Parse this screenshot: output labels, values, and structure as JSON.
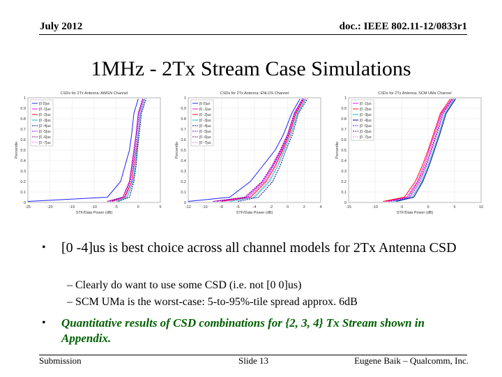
{
  "header": {
    "date": "July 2012",
    "doc": "doc.: IEEE 802.11-12/0833r1"
  },
  "title": "1MHz - 2Tx Stream Case Simulations",
  "chart_data": [
    {
      "type": "line",
      "title": "CSDs for 2Tx Antenna: AWGN Channel",
      "xlabel": "STF/Data Power (dB)",
      "ylabel": "Percentile",
      "xlim": [
        -25,
        5
      ],
      "ylim": [
        0,
        1
      ],
      "xticks": [
        "-25",
        "-20",
        "-15",
        "-10",
        "-5",
        "0",
        "5"
      ],
      "yticks": [
        "0",
        "0.1",
        "0.2",
        "0.3",
        "0.4",
        "0.5",
        "0.6",
        "0.7",
        "0.8",
        "0.9",
        "1"
      ],
      "legend": [
        "[0 0]us",
        "[0 -1]us",
        "[0 -2]us",
        "[0 -3]us",
        "[0 -4]us",
        "[0 -5]us",
        "[0 -6]us",
        "[0 -7]us"
      ],
      "colors": [
        "#1f1fff",
        "#ff00ff",
        "#ff0000",
        "#00c0c0",
        "#000080",
        "#8000ff",
        "#800080",
        "#ff80ff"
      ],
      "series_shape": [
        [
          -25,
          -7,
          -4,
          -3,
          -2,
          -1.5,
          -1,
          0
        ],
        [
          -7,
          -3.5,
          -2,
          -1.5,
          -1,
          -0.5,
          0,
          1
        ],
        [
          -6,
          -3,
          -1.5,
          -1,
          -0.5,
          0,
          0.5,
          1.5
        ],
        [
          -5,
          -2.5,
          -1.2,
          -0.7,
          -0.3,
          0,
          0.5,
          1.5
        ],
        [
          -4.5,
          -2,
          -1,
          -0.5,
          -0.2,
          0.2,
          0.7,
          1.8
        ],
        [
          -6.5,
          -3.2,
          -1.8,
          -1.2,
          -0.7,
          -0.3,
          0.2,
          1.2
        ],
        [
          -7,
          -3.5,
          -2,
          -1.4,
          -0.9,
          -0.5,
          0,
          1
        ],
        [
          -5.5,
          -2.8,
          -1.4,
          -0.9,
          -0.5,
          -0.1,
          0.4,
          1.4
        ]
      ]
    },
    {
      "type": "line",
      "title": "CSDs for 2Tx Antenna: ENLOS Channel",
      "xlabel": "STF/Data Power (dB)",
      "ylabel": "Percentile",
      "xlim": [
        -12,
        4
      ],
      "ylim": [
        0,
        1
      ],
      "xticks": [
        "-12",
        "-10",
        "-8",
        "-6",
        "-4",
        "-2",
        "0",
        "2",
        "4"
      ],
      "yticks": [
        "0",
        "0.1",
        "0.2",
        "0.3",
        "0.4",
        "0.5",
        "0.6",
        "0.7",
        "0.8",
        "0.9",
        "1"
      ],
      "legend": [
        "[0 0]us",
        "[0 -1]us",
        "[0 -2]us",
        "[0 -3]us",
        "[0 -4]us",
        "[0 -5]us",
        "[0 -6]us",
        "[0 -7]us"
      ],
      "colors": [
        "#1f1fff",
        "#ff00ff",
        "#ff0000",
        "#00c0c0",
        "#000080",
        "#8000ff",
        "#800080",
        "#ff80ff"
      ],
      "series_shape": [
        [
          -12,
          -7,
          -4.5,
          -3,
          -1.5,
          -0.5,
          0.5,
          1.5
        ],
        [
          -9,
          -5,
          -3,
          -1.8,
          -0.8,
          0,
          0.8,
          1.8
        ],
        [
          -8,
          -4.5,
          -2.6,
          -1.5,
          -0.6,
          0.2,
          1,
          2
        ],
        [
          -7,
          -4,
          -2.2,
          -1.2,
          -0.4,
          0.4,
          1.2,
          2.2
        ],
        [
          -6,
          -3.5,
          -1.8,
          -0.9,
          -0.2,
          0.6,
          1.3,
          2.4
        ],
        [
          -8.5,
          -4.8,
          -2.8,
          -1.7,
          -0.7,
          0.1,
          0.9,
          1.9
        ],
        [
          -9,
          -5.2,
          -3.1,
          -1.9,
          -0.9,
          0,
          0.8,
          1.8
        ],
        [
          -7.5,
          -4.2,
          -2.4,
          -1.4,
          -0.5,
          0.3,
          1.1,
          2.1
        ]
      ]
    },
    {
      "type": "line",
      "title": "CSDs for 2Tx Antenna: SCM UMa Channel",
      "xlabel": "STF/Data Power (dB)",
      "ylabel": "Percentile",
      "xlim": [
        -15,
        10
      ],
      "ylim": [
        0,
        1
      ],
      "xticks": [
        "-15",
        "-10",
        "-5",
        "0",
        "5",
        "10"
      ],
      "yticks": [
        "0",
        "0.1",
        "0.2",
        "0.3",
        "0.4",
        "0.5",
        "0.6",
        "0.7",
        "0.8",
        "0.9",
        "1"
      ],
      "legend": [
        "[0 -1]us",
        "[0 -2]us",
        "[0 -3]us",
        "[0 -4]us",
        "[0 -5]us",
        "[0 -6]us",
        "[0 -7]us"
      ],
      "colors": [
        "#ff00ff",
        "#ff0000",
        "#00c0c0",
        "#000080",
        "#8000ff",
        "#800080",
        "#ff80ff"
      ],
      "series_shape": [
        [
          -8,
          -4,
          -2,
          -0.8,
          0.2,
          1.2,
          2.5,
          4.5
        ],
        [
          -8.5,
          -4.5,
          -2.4,
          -1.1,
          0,
          1,
          2.3,
          4.2
        ],
        [
          -6.5,
          -3,
          -1.2,
          0,
          1,
          2,
          3.2,
          5
        ],
        [
          -6,
          -2.7,
          -1,
          0.2,
          1.2,
          2.2,
          3.4,
          5.2
        ],
        [
          -7,
          -3.4,
          -1.5,
          -0.3,
          0.7,
          1.7,
          2.9,
          4.8
        ],
        [
          -7.5,
          -3.7,
          -1.8,
          -0.5,
          0.5,
          1.5,
          2.7,
          4.6
        ],
        [
          -7.2,
          -3.5,
          -1.6,
          -0.4,
          0.6,
          1.6,
          2.8,
          4.7
        ]
      ]
    }
  ],
  "bullets": {
    "b1": "[0 -4]us is best choice across all channel models for 2Tx Antenna CSD",
    "sub1": "– Clearly do want to use some CSD (i.e. not [0 0]us)",
    "sub2": "– SCM UMa is the worst-case: 5-to-95%-tile spread approx. 6dB",
    "b2": "Quantitative results of CSD combinations for {2, 3, 4} Tx Stream shown in Appendix."
  },
  "bullet_glyph": "•",
  "footer": {
    "left": "Submission",
    "mid": "Slide 13",
    "right": "Eugene Baik – Qualcomm, Inc."
  }
}
